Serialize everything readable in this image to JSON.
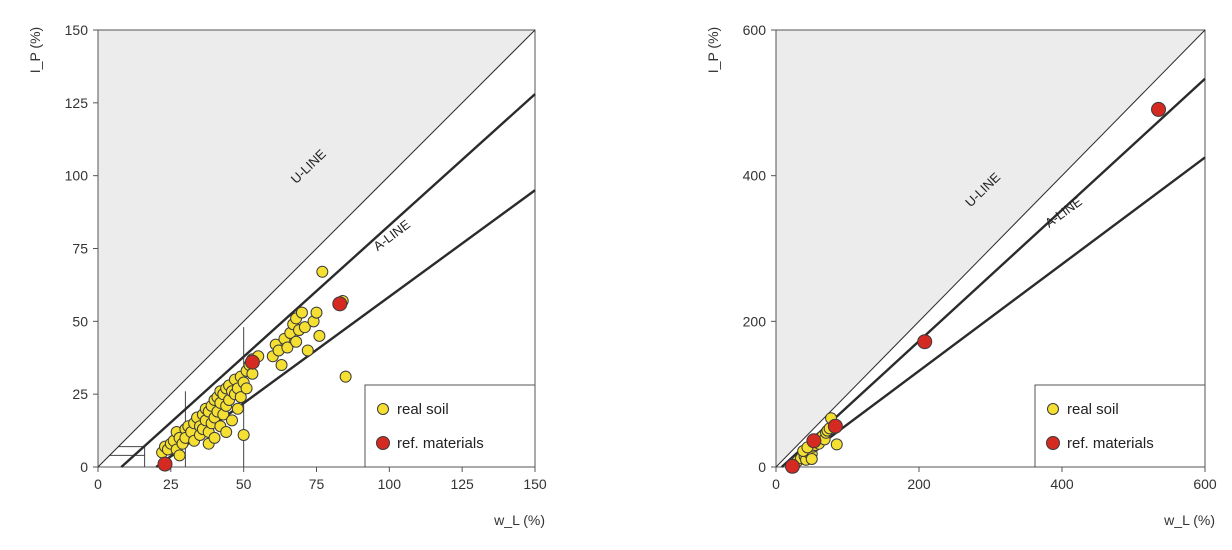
{
  "colors": {
    "real_soil": "#f5e032",
    "ref_materials": "#d42a22",
    "shade": "#ececec",
    "frame": "#555555",
    "strong_line": "#2b2b2b"
  },
  "chart_data": [
    {
      "type": "scatter",
      "title": "",
      "xlabel": "w_L (%)",
      "ylabel": "I_P (%)",
      "xlim": [
        0,
        150
      ],
      "ylim": [
        0,
        150
      ],
      "xticks": [
        0,
        25,
        50,
        75,
        100,
        125,
        150
      ],
      "yticks": [
        0,
        25,
        50,
        75,
        100,
        125,
        150
      ],
      "grid": false,
      "legend_position": "bottom-right",
      "line_labels": [
        "U-LINE",
        "A-LINE"
      ],
      "lines": [
        {
          "name": "",
          "points": [
            [
              0,
              0
            ],
            [
              150,
              150
            ]
          ],
          "style": "thin"
        },
        {
          "name": "U-LINE",
          "points": [
            [
              8,
              0
            ],
            [
              150,
              128
            ]
          ],
          "style": "bold"
        },
        {
          "name": "A-LINE",
          "points": [
            [
              20,
              0
            ],
            [
              150,
              95
            ]
          ],
          "style": "bold"
        }
      ],
      "zone_lines": [
        [
          [
            30,
            0
          ],
          [
            30,
            26
          ]
        ],
        [
          [
            50,
            0
          ],
          [
            50,
            48
          ]
        ],
        [
          [
            16,
            0
          ],
          [
            16,
            7
          ]
        ],
        [
          [
            4,
            4
          ],
          [
            16,
            4
          ]
        ],
        [
          [
            7,
            7
          ],
          [
            16,
            7
          ]
        ]
      ],
      "series": [
        {
          "name": "real soil",
          "points": [
            [
              22,
              5
            ],
            [
              23,
              7
            ],
            [
              24,
              6
            ],
            [
              25,
              8
            ],
            [
              26,
              9
            ],
            [
              27,
              6
            ],
            [
              27,
              12
            ],
            [
              28,
              10
            ],
            [
              28,
              4
            ],
            [
              29,
              8
            ],
            [
              30,
              13
            ],
            [
              30,
              10
            ],
            [
              31,
              14
            ],
            [
              32,
              12
            ],
            [
              33,
              15
            ],
            [
              33,
              9
            ],
            [
              34,
              17
            ],
            [
              35,
              14
            ],
            [
              35,
              11
            ],
            [
              36,
              18
            ],
            [
              36,
              13
            ],
            [
              37,
              20
            ],
            [
              37,
              16
            ],
            [
              38,
              19
            ],
            [
              38,
              12
            ],
            [
              38,
              8
            ],
            [
              39,
              21
            ],
            [
              39,
              15
            ],
            [
              40,
              23
            ],
            [
              40,
              17
            ],
            [
              40,
              10
            ],
            [
              41,
              24
            ],
            [
              41,
              19
            ],
            [
              42,
              22
            ],
            [
              42,
              14
            ],
            [
              42,
              26
            ],
            [
              43,
              25
            ],
            [
              43,
              18
            ],
            [
              44,
              27
            ],
            [
              44,
              21
            ],
            [
              44,
              12
            ],
            [
              45,
              28
            ],
            [
              45,
              23
            ],
            [
              46,
              26
            ],
            [
              46,
              16
            ],
            [
              47,
              30
            ],
            [
              47,
              25
            ],
            [
              48,
              27
            ],
            [
              48,
              20
            ],
            [
              49,
              31
            ],
            [
              49,
              24
            ],
            [
              50,
              29
            ],
            [
              50,
              11
            ],
            [
              51,
              33
            ],
            [
              51,
              27
            ],
            [
              52,
              35
            ],
            [
              53,
              32
            ],
            [
              53,
              37
            ],
            [
              55,
              38
            ],
            [
              60,
              38
            ],
            [
              61,
              42
            ],
            [
              62,
              40
            ],
            [
              63,
              35
            ],
            [
              64,
              44
            ],
            [
              65,
              41
            ],
            [
              66,
              46
            ],
            [
              67,
              49
            ],
            [
              68,
              43
            ],
            [
              68,
              51
            ],
            [
              69,
              47
            ],
            [
              70,
              53
            ],
            [
              71,
              48
            ],
            [
              72,
              40
            ],
            [
              74,
              50
            ],
            [
              75,
              53
            ],
            [
              76,
              45
            ],
            [
              77,
              67
            ],
            [
              84,
              57
            ],
            [
              85,
              31
            ]
          ]
        },
        {
          "name": "ref. materials",
          "points": [
            [
              23,
              1
            ],
            [
              53,
              36
            ],
            [
              83,
              56
            ]
          ]
        }
      ]
    },
    {
      "type": "scatter",
      "title": "",
      "xlabel": "w_L (%)",
      "ylabel": "I_P (%)",
      "xlim": [
        0,
        600
      ],
      "ylim": [
        0,
        600
      ],
      "xticks": [
        0,
        200,
        400,
        600
      ],
      "yticks": [
        0,
        200,
        400,
        600
      ],
      "grid": false,
      "legend_position": "bottom-right",
      "line_labels": [
        "U-LINE",
        "A-LINE"
      ],
      "lines": [
        {
          "name": "",
          "points": [
            [
              0,
              0
            ],
            [
              600,
              600
            ]
          ],
          "style": "thin"
        },
        {
          "name": "U-LINE",
          "points": [
            [
              8,
              0
            ],
            [
              600,
              533
            ]
          ],
          "style": "bold"
        },
        {
          "name": "A-LINE",
          "points": [
            [
              20,
              0
            ],
            [
              600,
              425
            ]
          ],
          "style": "bold"
        }
      ],
      "series": [
        {
          "name": "real soil",
          "points": [
            [
              25,
              5
            ],
            [
              30,
              8
            ],
            [
              35,
              12
            ],
            [
              40,
              15
            ],
            [
              42,
              10
            ],
            [
              45,
              20
            ],
            [
              48,
              25
            ],
            [
              50,
              18
            ],
            [
              52,
              28
            ],
            [
              55,
              30
            ],
            [
              58,
              35
            ],
            [
              60,
              32
            ],
            [
              62,
              40
            ],
            [
              65,
              42
            ],
            [
              68,
              38
            ],
            [
              70,
              47
            ],
            [
              72,
              50
            ],
            [
              75,
              53
            ],
            [
              77,
              67
            ],
            [
              84,
              57
            ],
            [
              85,
              31
            ],
            [
              38,
              22
            ],
            [
              44,
              27
            ],
            [
              50,
              11
            ]
          ]
        },
        {
          "name": "ref. materials",
          "points": [
            [
              23,
              1
            ],
            [
              53,
              36
            ],
            [
              83,
              56
            ],
            [
              208,
              172
            ],
            [
              535,
              491
            ]
          ]
        }
      ]
    }
  ]
}
